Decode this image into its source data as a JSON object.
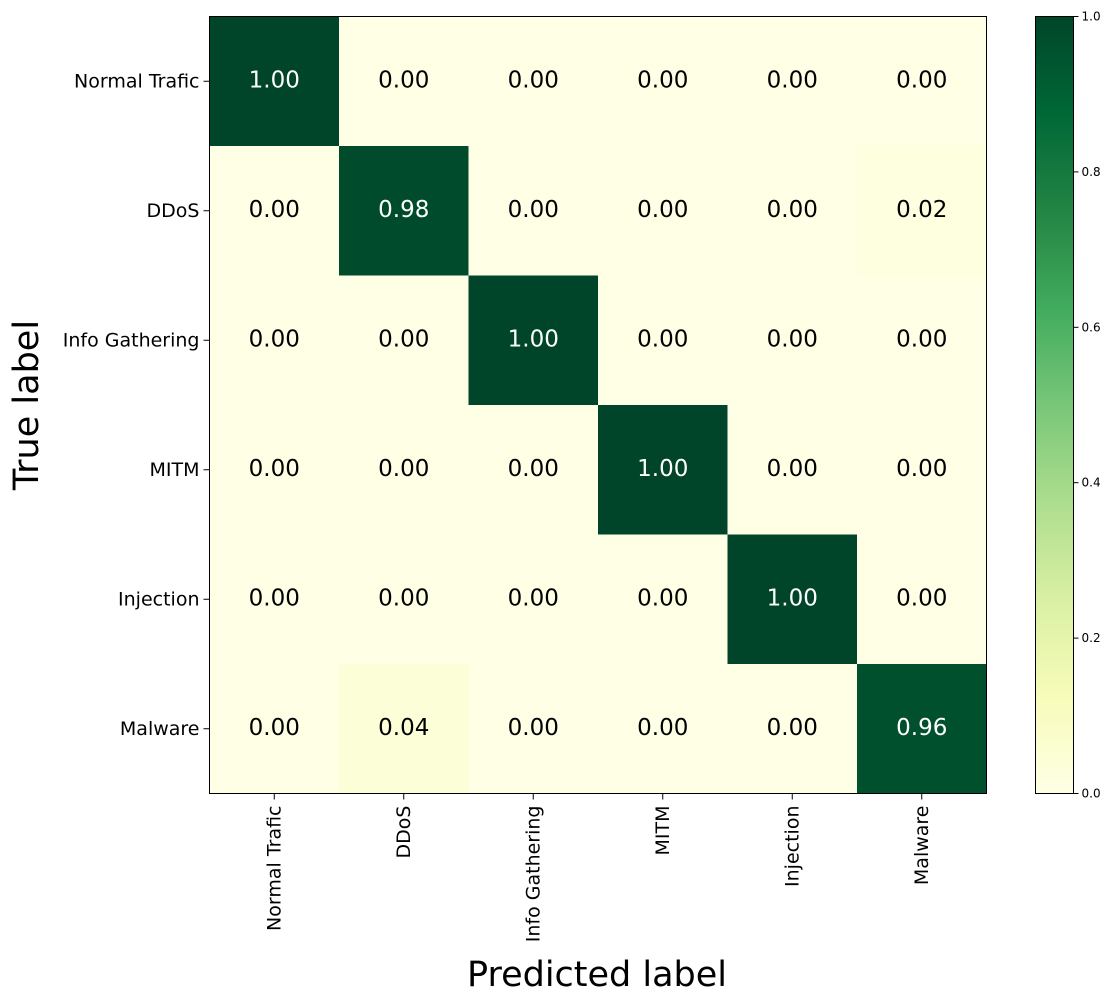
{
  "chart_data": {
    "type": "heatmap",
    "title": "",
    "xlabel": "Predicted label",
    "ylabel": "True label",
    "x_categories": [
      "Normal Trafic",
      "DDoS",
      "Info Gathering",
      "MITM",
      "Injection",
      "Malware"
    ],
    "y_categories": [
      "Normal Trafic",
      "DDoS",
      "Info Gathering",
      "MITM",
      "Injection",
      "Malware"
    ],
    "values": [
      [
        1.0,
        0.0,
        0.0,
        0.0,
        0.0,
        0.0
      ],
      [
        0.0,
        0.98,
        0.0,
        0.0,
        0.0,
        0.02
      ],
      [
        0.0,
        0.0,
        1.0,
        0.0,
        0.0,
        0.0
      ],
      [
        0.0,
        0.0,
        0.0,
        1.0,
        0.0,
        0.0
      ],
      [
        0.0,
        0.0,
        0.0,
        0.0,
        1.0,
        0.0
      ],
      [
        0.0,
        0.04,
        0.0,
        0.0,
        0.0,
        0.96
      ]
    ],
    "value_format": "0.00",
    "colormap": "YlGn",
    "colorbar": {
      "range": [
        0.0,
        1.0
      ],
      "ticks": [
        "0.0",
        "0.2",
        "0.4",
        "0.6",
        "0.8",
        "1.0"
      ],
      "placement": "right"
    },
    "text_color_light": "#ffffff",
    "text_color_dark": "#000000"
  }
}
